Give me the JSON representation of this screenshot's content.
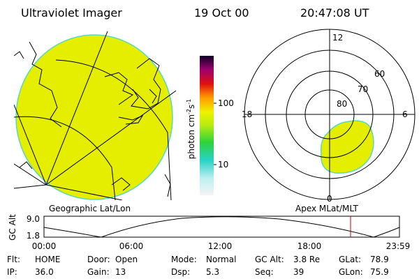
{
  "header": {
    "title": "Ultraviolet Imager",
    "date": "19 Oct 00",
    "time": "20:47:08 UT"
  },
  "colorbar": {
    "label": [
      "photon cm",
      "-2",
      "s",
      "-1"
    ],
    "ticks": [
      "100",
      "10"
    ]
  },
  "polar": {
    "mlt": [
      "12",
      "18",
      "6",
      "0"
    ],
    "mlat": [
      "60",
      "70",
      "80"
    ]
  },
  "panel_labels": [
    "Geographic Lat/Lon",
    "Apex MLat/MLT"
  ],
  "timeline": {
    "axis_label": "GC Alt",
    "yticks": [
      "9.0",
      "1.8"
    ],
    "xticks": [
      "00:00",
      "06:00",
      "12:00",
      "18:00",
      "23:59"
    ]
  },
  "footer": {
    "rows": [
      [
        {
          "label": "Flt:",
          "value": "HOME"
        },
        {
          "label": "Door:",
          "value": "Open"
        },
        {
          "label": "Mode:",
          "value": "Normal"
        },
        {
          "label": "GC Alt:",
          "value": "3.8 Re"
        },
        {
          "label": "GLat:",
          "value": "78.9"
        }
      ],
      [
        {
          "label": "IP:",
          "value": "36.0"
        },
        {
          "label": "Gain:",
          "value": "13"
        },
        {
          "label": "Dsp:",
          "value": "5.3"
        },
        {
          "label": "Seq:",
          "value": "39"
        },
        {
          "label": "GLon:",
          "value": "75.9"
        }
      ]
    ]
  }
}
